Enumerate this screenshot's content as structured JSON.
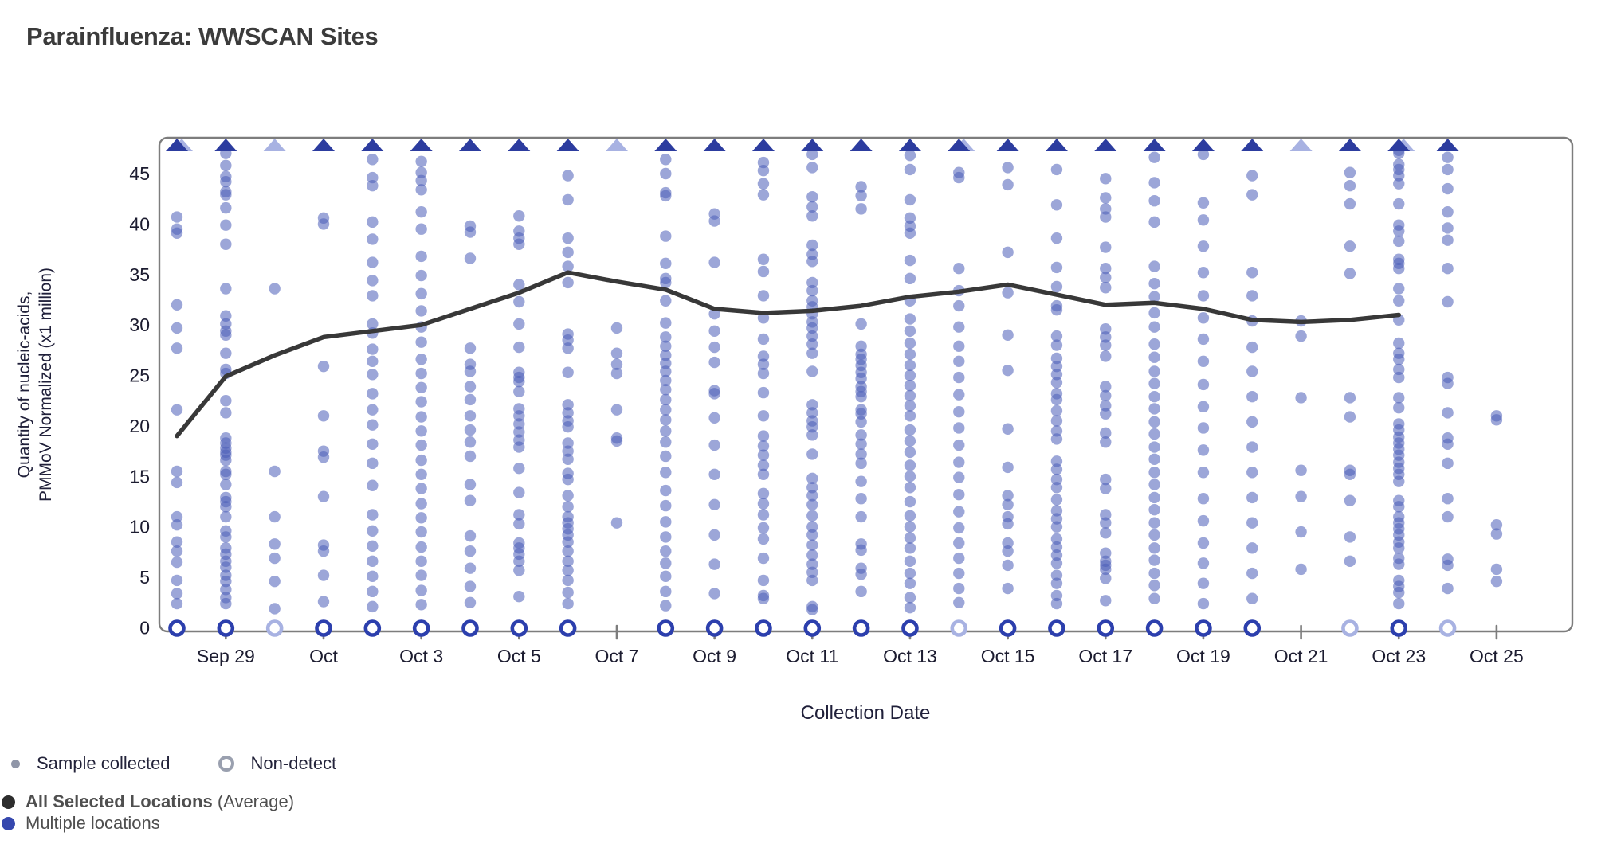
{
  "page": {
    "title": "Parainfluenza: WWSCAN Sites"
  },
  "legend": {
    "sample_collected": "Sample collected",
    "non_detect": "Non-detect",
    "average_bold": "All Selected Locations",
    "average_suffix": " (Average)",
    "multiple_locations": "Multiple locations"
  },
  "chart_data": {
    "type": "scatter",
    "title": "Parainfluenza: WWSCAN Sites",
    "xlabel": "Collection Date",
    "ylabel_line1": "Quantity of nucleic-acids,",
    "ylabel_line2": "PMMoV Normalized (x1 million)",
    "ylim": [
      0,
      48.5
    ],
    "yticks": [
      0,
      5,
      10,
      15,
      20,
      25,
      30,
      35,
      40,
      45
    ],
    "grid": false,
    "legend_position": "bottom-left",
    "x_tick_labels": [
      {
        "label": "Sep 29",
        "day": 1
      },
      {
        "label": "Oct",
        "day": 3
      },
      {
        "label": "Oct 3",
        "day": 5
      },
      {
        "label": "Oct 5",
        "day": 7
      },
      {
        "label": "Oct 7",
        "day": 9
      },
      {
        "label": "Oct 9",
        "day": 11
      },
      {
        "label": "Oct 11",
        "day": 13
      },
      {
        "label": "Oct 13",
        "day": 15
      },
      {
        "label": "Oct 15",
        "day": 17
      },
      {
        "label": "Oct 17",
        "day": 19
      },
      {
        "label": "Oct 19",
        "day": 21
      },
      {
        "label": "Oct 21",
        "day": 23
      },
      {
        "label": "Oct 23",
        "day": 25
      },
      {
        "label": "Oct 25",
        "day": 27
      }
    ],
    "days": [
      {
        "date": "Sep 28",
        "above_range": "both",
        "non_detect": "blue",
        "samples": [
          40.7,
          39.5,
          39.1,
          32.0,
          29.7,
          27.7,
          21.6,
          15.5,
          14.4,
          11.0,
          10.2,
          8.5,
          7.6,
          6.5,
          4.7,
          3.4,
          2.4
        ]
      },
      {
        "date": "Sep 29",
        "above_range": "dark",
        "non_detect": "blue",
        "samples": [
          47.0,
          45.8,
          44.7,
          44.2,
          43.2,
          42.9,
          41.6,
          39.9,
          38.0,
          33.6,
          30.9,
          30.1,
          29.4,
          29.0,
          27.2,
          25.6,
          25.2,
          22.5,
          21.3,
          18.8,
          18.3,
          17.8,
          17.4,
          17.1,
          16.6,
          15.5,
          15.2,
          14.2,
          12.9,
          12.5,
          12.0,
          11.0,
          9.6,
          9.0,
          7.9,
          7.3,
          6.6,
          6.0,
          5.2,
          4.6,
          3.8,
          3.0,
          2.4
        ]
      },
      {
        "date": "Sep 30",
        "above_range": "light",
        "non_detect": "light",
        "samples": [
          33.6,
          15.5,
          11.0,
          8.3,
          6.9,
          4.6,
          1.9
        ]
      },
      {
        "date": "Oct 1",
        "above_range": "dark",
        "non_detect": "blue",
        "samples": [
          40.6,
          40.0,
          25.9,
          21.0,
          17.5,
          16.9,
          13.0,
          8.2,
          7.6,
          5.2,
          2.6
        ]
      },
      {
        "date": "Oct 2",
        "above_range": "dark",
        "non_detect": "blue",
        "samples": [
          46.4,
          44.6,
          43.8,
          40.2,
          38.5,
          36.2,
          34.4,
          32.9,
          30.1,
          29.2,
          27.6,
          26.4,
          25.1,
          23.2,
          21.6,
          20.1,
          18.2,
          16.3,
          14.1,
          11.2,
          9.6,
          8.1,
          6.6,
          5.1,
          3.6,
          2.1
        ]
      },
      {
        "date": "Oct 3",
        "above_range": "dark",
        "non_detect": "blue",
        "samples": [
          46.2,
          45.1,
          44.3,
          43.4,
          41.2,
          39.5,
          36.8,
          34.9,
          33.1,
          31.4,
          29.8,
          28.3,
          26.6,
          25.2,
          23.8,
          22.4,
          20.9,
          19.5,
          18.1,
          16.6,
          15.2,
          13.8,
          12.3,
          10.9,
          9.5,
          8.0,
          6.6,
          5.2,
          3.7,
          2.3
        ]
      },
      {
        "date": "Oct 4",
        "above_range": "dark",
        "non_detect": "blue",
        "samples": [
          39.8,
          39.2,
          36.6,
          27.7,
          26.1,
          25.4,
          23.9,
          22.6,
          21.0,
          19.6,
          18.4,
          17.0,
          14.2,
          12.6,
          9.1,
          7.6,
          5.9,
          4.1,
          2.5
        ]
      },
      {
        "date": "Oct 5",
        "above_range": "dark",
        "non_detect": "blue",
        "samples": [
          40.8,
          39.3,
          38.6,
          38.0,
          34.0,
          32.3,
          30.1,
          27.8,
          25.3,
          24.8,
          24.4,
          23.4,
          21.7,
          21.0,
          20.2,
          19.4,
          18.6,
          17.9,
          15.8,
          13.4,
          11.2,
          10.3,
          8.4,
          7.9,
          7.3,
          6.6,
          5.7,
          3.1
        ]
      },
      {
        "date": "Oct 6",
        "above_range": "dark",
        "non_detect": "blue",
        "samples": [
          44.8,
          42.4,
          38.6,
          37.2,
          35.8,
          34.2,
          29.1,
          28.5,
          27.7,
          25.3,
          22.1,
          21.3,
          20.5,
          19.9,
          18.3,
          17.5,
          16.7,
          15.3,
          14.7,
          13.1,
          12.0,
          11.0,
          10.4,
          9.8,
          9.2,
          8.5,
          7.6,
          6.6,
          5.7,
          4.7,
          3.5,
          2.4
        ]
      },
      {
        "date": "Oct 7",
        "above_range": "light",
        "non_detect": "none",
        "samples": [
          29.7,
          27.2,
          26.1,
          25.2,
          21.6,
          18.8,
          18.5,
          10.4
        ]
      },
      {
        "date": "Oct 8",
        "above_range": "dark",
        "non_detect": "blue",
        "samples": [
          46.4,
          45.0,
          43.1,
          42.8,
          38.8,
          36.1,
          34.6,
          34.2,
          32.4,
          30.2,
          28.8,
          27.9,
          27.0,
          26.2,
          25.4,
          24.5,
          23.6,
          22.6,
          21.6,
          20.6,
          19.5,
          18.4,
          17.0,
          15.4,
          13.6,
          12.1,
          10.5,
          9.0,
          7.6,
          6.4,
          5.1,
          3.6,
          2.2
        ]
      },
      {
        "date": "Oct 9",
        "above_range": "dark",
        "non_detect": "blue",
        "samples": [
          41.0,
          40.3,
          36.2,
          31.1,
          29.4,
          27.8,
          26.3,
          23.5,
          23.2,
          20.8,
          18.1,
          15.2,
          12.2,
          9.2,
          6.3,
          3.4
        ]
      },
      {
        "date": "Oct 10",
        "above_range": "dark",
        "non_detect": "blue",
        "samples": [
          46.1,
          45.3,
          44.0,
          42.9,
          36.5,
          35.3,
          32.9,
          30.7,
          28.6,
          26.9,
          26.1,
          25.2,
          23.3,
          21.0,
          19.0,
          18.0,
          17.1,
          16.1,
          15.2,
          13.3,
          12.3,
          11.2,
          9.9,
          8.8,
          6.9,
          4.7,
          3.2,
          2.9
        ]
      },
      {
        "date": "Oct 11",
        "above_range": "dark",
        "non_detect": "blue",
        "samples": [
          46.9,
          45.6,
          42.7,
          41.7,
          40.8,
          37.9,
          37.0,
          36.3,
          34.2,
          33.4,
          32.4,
          31.8,
          31.1,
          30.3,
          29.7,
          28.9,
          28.1,
          27.2,
          25.4,
          22.1,
          21.3,
          20.5,
          19.9,
          19.1,
          17.2,
          14.8,
          13.9,
          13.1,
          12.2,
          11.1,
          10.0,
          9.2,
          8.2,
          7.2,
          6.3,
          5.5,
          4.7,
          2.1,
          1.8
        ]
      },
      {
        "date": "Oct 12",
        "above_range": "dark",
        "non_detect": "blue",
        "samples": [
          43.7,
          42.8,
          41.5,
          30.1,
          27.9,
          27.1,
          26.6,
          26.0,
          25.3,
          24.7,
          23.9,
          23.4,
          22.9,
          21.6,
          21.2,
          20.4,
          19.1,
          18.2,
          17.2,
          16.3,
          14.5,
          12.8,
          11.0,
          8.3,
          7.7,
          5.9,
          5.3,
          3.6
        ]
      },
      {
        "date": "Oct 13",
        "above_range": "dark",
        "non_detect": "blue",
        "samples": [
          46.8,
          45.4,
          42.4,
          40.6,
          39.8,
          39.1,
          36.4,
          34.6,
          32.4,
          30.6,
          29.4,
          28.2,
          27.1,
          26.0,
          25.0,
          24.0,
          23.0,
          22.0,
          21.0,
          19.6,
          18.5,
          17.4,
          16.1,
          15.0,
          13.9,
          12.5,
          11.1,
          10.0,
          8.9,
          7.9,
          6.6,
          5.4,
          4.4,
          3.0,
          2.0
        ]
      },
      {
        "date": "Oct 14",
        "above_range": "both",
        "non_detect": "light",
        "samples": [
          45.1,
          44.6,
          35.6,
          33.4,
          31.9,
          29.8,
          27.9,
          26.4,
          24.8,
          23.1,
          21.4,
          19.8,
          18.1,
          16.4,
          14.9,
          13.2,
          11.5,
          9.9,
          8.4,
          6.9,
          5.4,
          3.9,
          2.5
        ]
      },
      {
        "date": "Oct 15",
        "above_range": "dark",
        "non_detect": "blue",
        "samples": [
          45.6,
          43.9,
          37.2,
          33.2,
          29.0,
          25.5,
          19.7,
          15.9,
          13.1,
          12.2,
          11.0,
          10.3,
          8.4,
          7.6,
          6.2,
          3.9
        ]
      },
      {
        "date": "Oct 16",
        "above_range": "dark",
        "non_detect": "blue",
        "samples": [
          45.4,
          41.9,
          38.6,
          35.7,
          33.8,
          31.9,
          31.5,
          28.9,
          28.0,
          26.7,
          25.9,
          25.1,
          24.3,
          23.2,
          22.6,
          21.5,
          20.5,
          19.5,
          18.7,
          16.5,
          15.7,
          14.7,
          13.9,
          12.7,
          11.6,
          10.8,
          10.0,
          8.8,
          8.0,
          7.2,
          6.4,
          5.2,
          4.4,
          3.2,
          2.4
        ]
      },
      {
        "date": "Oct 17",
        "above_range": "dark",
        "non_detect": "blue",
        "samples": [
          44.5,
          42.6,
          41.5,
          40.7,
          37.7,
          35.6,
          34.7,
          33.7,
          29.6,
          28.8,
          28.0,
          26.9,
          23.9,
          23.0,
          22.0,
          21.2,
          19.3,
          18.4,
          14.7,
          13.8,
          11.2,
          10.4,
          9.4,
          7.4,
          6.6,
          6.2,
          5.8,
          4.9,
          2.7
        ]
      },
      {
        "date": "Oct 18",
        "above_range": "dark",
        "non_detect": "blue",
        "samples": [
          46.6,
          44.1,
          42.3,
          40.2,
          35.8,
          34.1,
          32.8,
          31.2,
          29.8,
          28.1,
          26.8,
          25.4,
          24.2,
          22.9,
          21.7,
          20.4,
          19.2,
          17.9,
          16.7,
          15.4,
          14.2,
          12.9,
          11.7,
          10.4,
          9.2,
          7.9,
          6.7,
          5.4,
          4.2,
          2.9
        ]
      },
      {
        "date": "Oct 19",
        "above_range": "dark",
        "non_detect": "blue",
        "samples": [
          46.9,
          42.1,
          40.4,
          37.8,
          35.2,
          32.9,
          30.7,
          28.6,
          26.4,
          24.1,
          21.9,
          19.8,
          17.6,
          15.4,
          12.8,
          10.6,
          8.4,
          6.4,
          4.4,
          2.4
        ]
      },
      {
        "date": "Oct 20",
        "above_range": "dark",
        "non_detect": "blue",
        "samples": [
          44.8,
          42.9,
          35.2,
          32.9,
          30.4,
          27.8,
          25.4,
          22.9,
          20.4,
          17.9,
          15.4,
          12.9,
          10.4,
          7.9,
          5.4,
          2.9
        ]
      },
      {
        "date": "Oct 21",
        "above_range": "light",
        "non_detect": "none",
        "samples": [
          30.4,
          28.9,
          22.8,
          15.6,
          13.0,
          9.5,
          5.8
        ]
      },
      {
        "date": "Oct 22",
        "above_range": "dark",
        "non_detect": "light",
        "samples": [
          45.1,
          43.8,
          42.0,
          37.8,
          35.1,
          22.8,
          20.9,
          15.6,
          15.2,
          12.6,
          9.0,
          6.6
        ]
      },
      {
        "date": "Oct 23",
        "above_range": "both",
        "non_detect": "blue",
        "samples": [
          47.3,
          47.0,
          45.9,
          45.4,
          44.8,
          44.0,
          42.0,
          39.9,
          39.3,
          38.3,
          36.5,
          36.1,
          35.6,
          33.6,
          32.4,
          30.5,
          28.2,
          27.2,
          26.6,
          25.6,
          24.8,
          22.8,
          21.8,
          20.2,
          19.6,
          18.9,
          18.3,
          17.7,
          17.1,
          16.4,
          15.8,
          15.2,
          14.5,
          12.6,
          12.0,
          11.0,
          10.4,
          9.8,
          9.2,
          8.5,
          7.9,
          6.9,
          6.3,
          4.7,
          4.1,
          3.5,
          2.4
        ]
      },
      {
        "date": "Oct 24",
        "above_range": "dark",
        "non_detect": "light",
        "samples": [
          46.6,
          45.4,
          43.5,
          41.2,
          39.6,
          38.4,
          35.6,
          32.3,
          24.8,
          24.2,
          21.3,
          18.8,
          18.2,
          16.3,
          12.8,
          11.0,
          6.8,
          6.2,
          3.9
        ]
      },
      {
        "date": "Oct 25",
        "above_range": "none",
        "non_detect": "none",
        "samples": [
          21.0,
          20.6,
          10.2,
          9.3,
          5.8,
          4.6
        ]
      }
    ],
    "average_series_name": "All Selected Locations (Average)",
    "average_line": [
      {
        "day": 0,
        "value": 19.0
      },
      {
        "day": 1,
        "value": 24.9
      },
      {
        "day": 2,
        "value": 27.0
      },
      {
        "day": 3,
        "value": 28.8
      },
      {
        "day": 4,
        "value": 29.4
      },
      {
        "day": 5,
        "value": 30.0
      },
      {
        "day": 6,
        "value": 31.6
      },
      {
        "day": 7,
        "value": 33.2
      },
      {
        "day": 8,
        "value": 35.2
      },
      {
        "day": 9,
        "value": 34.3
      },
      {
        "day": 10,
        "value": 33.5
      },
      {
        "day": 11,
        "value": 31.6
      },
      {
        "day": 12,
        "value": 31.2
      },
      {
        "day": 13,
        "value": 31.4
      },
      {
        "day": 14,
        "value": 31.9
      },
      {
        "day": 15,
        "value": 32.8
      },
      {
        "day": 16,
        "value": 33.3
      },
      {
        "day": 17,
        "value": 34.0
      },
      {
        "day": 18,
        "value": 33.0
      },
      {
        "day": 19,
        "value": 32.0
      },
      {
        "day": 20,
        "value": 32.2
      },
      {
        "day": 21,
        "value": 31.6
      },
      {
        "day": 22,
        "value": 30.5
      },
      {
        "day": 23,
        "value": 30.3
      },
      {
        "day": 24,
        "value": 30.5
      },
      {
        "day": 25,
        "value": 31.0
      }
    ],
    "colors": {
      "sample_dot": "#4a5cb8",
      "sample_dot_opacity": "0.55",
      "triangle_dark": "#2c3c9f",
      "triangle_light": "#a8b2e2",
      "non_detect_stroke": "#2c3fad",
      "non_detect_light": "#a8b2e2",
      "average_line": "#383838",
      "axis": "#7d7d7d",
      "tick_text": "#1c1c30",
      "axis_title_text": "#20203a"
    }
  }
}
